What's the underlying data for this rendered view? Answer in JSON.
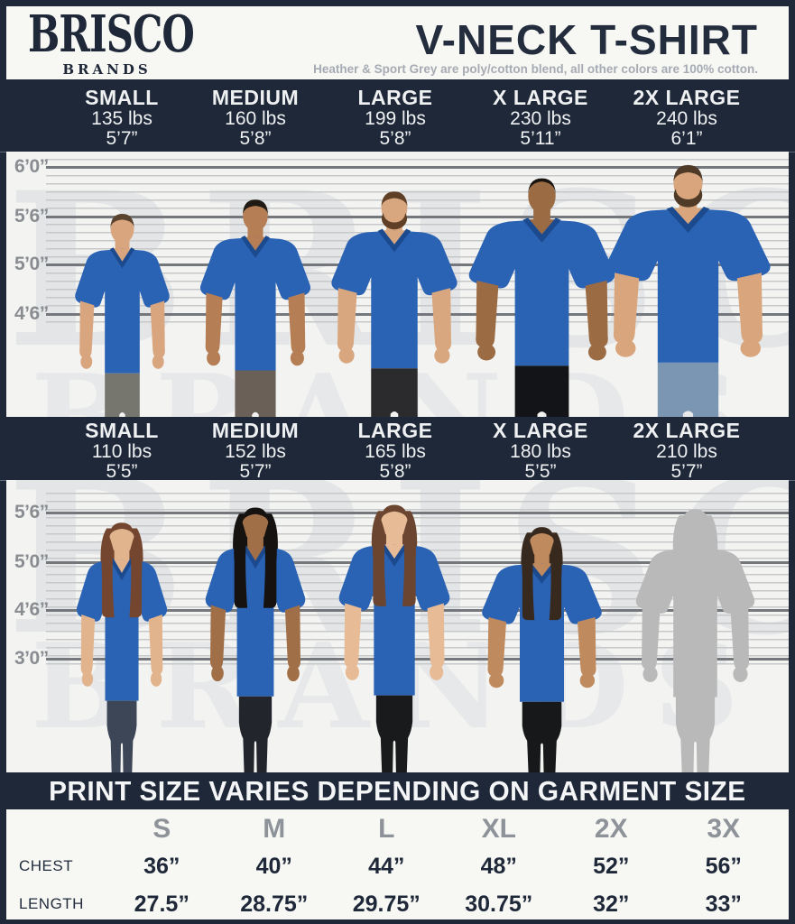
{
  "header": {
    "brand_line1": "BRISCO",
    "brand_line2": "BRANDS",
    "title": "V-NECK T-SHIRT",
    "subtitle": "Heather & Sport Grey are poly/cotton blend, all other colors are 100% cotton."
  },
  "mens": {
    "sizes": [
      {
        "label": "SMALL",
        "weight": "135 lbs",
        "height": "5’7”"
      },
      {
        "label": "MEDIUM",
        "weight": "160 lbs",
        "height": "5’8”"
      },
      {
        "label": "LARGE",
        "weight": "199 lbs",
        "height": "5’8”"
      },
      {
        "label": "X LARGE",
        "weight": "230 lbs",
        "height": "5’11”"
      },
      {
        "label": "2X LARGE",
        "weight": "240 lbs",
        "height": "6’1”"
      }
    ],
    "height_markers": [
      "6’0”",
      "5’6”",
      "5’0”",
      "4’6”"
    ],
    "figures": [
      {
        "skin": "#d9a57f",
        "hair": "#5a4430",
        "hair_style": "short",
        "beard": false,
        "pants": "#76766f"
      },
      {
        "skin": "#b57e55",
        "hair": "#201a15",
        "hair_style": "short",
        "beard": false,
        "pants": "#6a6057"
      },
      {
        "skin": "#d8a77f",
        "hair": "#5f4027",
        "hair_style": "short",
        "beard": true,
        "pants": "#2b2b2d"
      },
      {
        "skin": "#9b6b44",
        "hair": "#191410",
        "hair_style": "buzz",
        "beard": false,
        "pants": "#131417"
      },
      {
        "skin": "#d8a57c",
        "hair": "#4e3a27",
        "hair_style": "short",
        "beard": true,
        "pants": "#7b96b3"
      }
    ]
  },
  "womens": {
    "sizes": [
      {
        "label": "SMALL",
        "weight": "110 lbs",
        "height": "5’5”"
      },
      {
        "label": "MEDIUM",
        "weight": "152 lbs",
        "height": "5’7”"
      },
      {
        "label": "LARGE",
        "weight": "165 lbs",
        "height": "5’8”"
      },
      {
        "label": "X LARGE",
        "weight": "180 lbs",
        "height": "5’5”"
      },
      {
        "label": "2X LARGE",
        "weight": "210 lbs",
        "height": "5’7”"
      }
    ],
    "height_markers": [
      "5’6”",
      "5’0”",
      "4’6”",
      "3’0”"
    ],
    "figures": [
      {
        "skin": "#e2b48d",
        "hair": "#74462f",
        "hair_style": "long",
        "beard": false,
        "pants": "#3d4656"
      },
      {
        "skin": "#a06f48",
        "hair": "#161210",
        "hair_style": "long",
        "beard": false,
        "pants": "#23252d"
      },
      {
        "skin": "#e6bb95",
        "hair": "#6b4530",
        "hair_style": "long",
        "beard": false,
        "pants": "#191a1c"
      },
      {
        "skin": "#bf8a5e",
        "hair": "#38291f",
        "hair_style": "long",
        "beard": false,
        "pants": "#17181a"
      },
      {
        "style": "silhouette",
        "color": "#b9b9b9"
      }
    ]
  },
  "watermark": {
    "line1": "BRISCO",
    "line2": "BRANDS"
  },
  "banner": {
    "text": "PRINT SIZE VARIES DEPENDING ON GARMENT SIZE"
  },
  "size_table": {
    "columns": [
      "S",
      "M",
      "L",
      "XL",
      "2X",
      "3X"
    ],
    "rows": [
      {
        "label": "CHEST",
        "values": [
          "36”",
          "40”",
          "44”",
          "48”",
          "52”",
          "56”"
        ]
      },
      {
        "label": "LENGTH",
        "values": [
          "27.5”",
          "28.75”",
          "29.75”",
          "30.75”",
          "32”",
          "33”"
        ]
      }
    ]
  },
  "chart_data": {
    "type": "table",
    "title": "PRINT SIZE VARIES DEPENDING ON GARMENT SIZE",
    "columns": [
      "S",
      "M",
      "L",
      "XL",
      "2X",
      "3X"
    ],
    "rows": [
      {
        "label": "CHEST",
        "values_inches": [
          36,
          40,
          44,
          48,
          52,
          56
        ]
      },
      {
        "label": "LENGTH",
        "values_inches": [
          27.5,
          28.75,
          29.75,
          30.75,
          32,
          33
        ]
      }
    ]
  },
  "colors": {
    "navy": "#1e2838",
    "shirt_blue": "#2a62b4",
    "shirt_trim": "#1c4a8e",
    "photo_bg": "#f3f3f1",
    "watermark_grey": "#d9dce0",
    "line_minor": "#c6c8c9",
    "line_major": "#74777b",
    "silhouette_grey": "#b9b9b9",
    "text_light": "#eef0f2",
    "subtitle_grey": "#a6abb3"
  }
}
